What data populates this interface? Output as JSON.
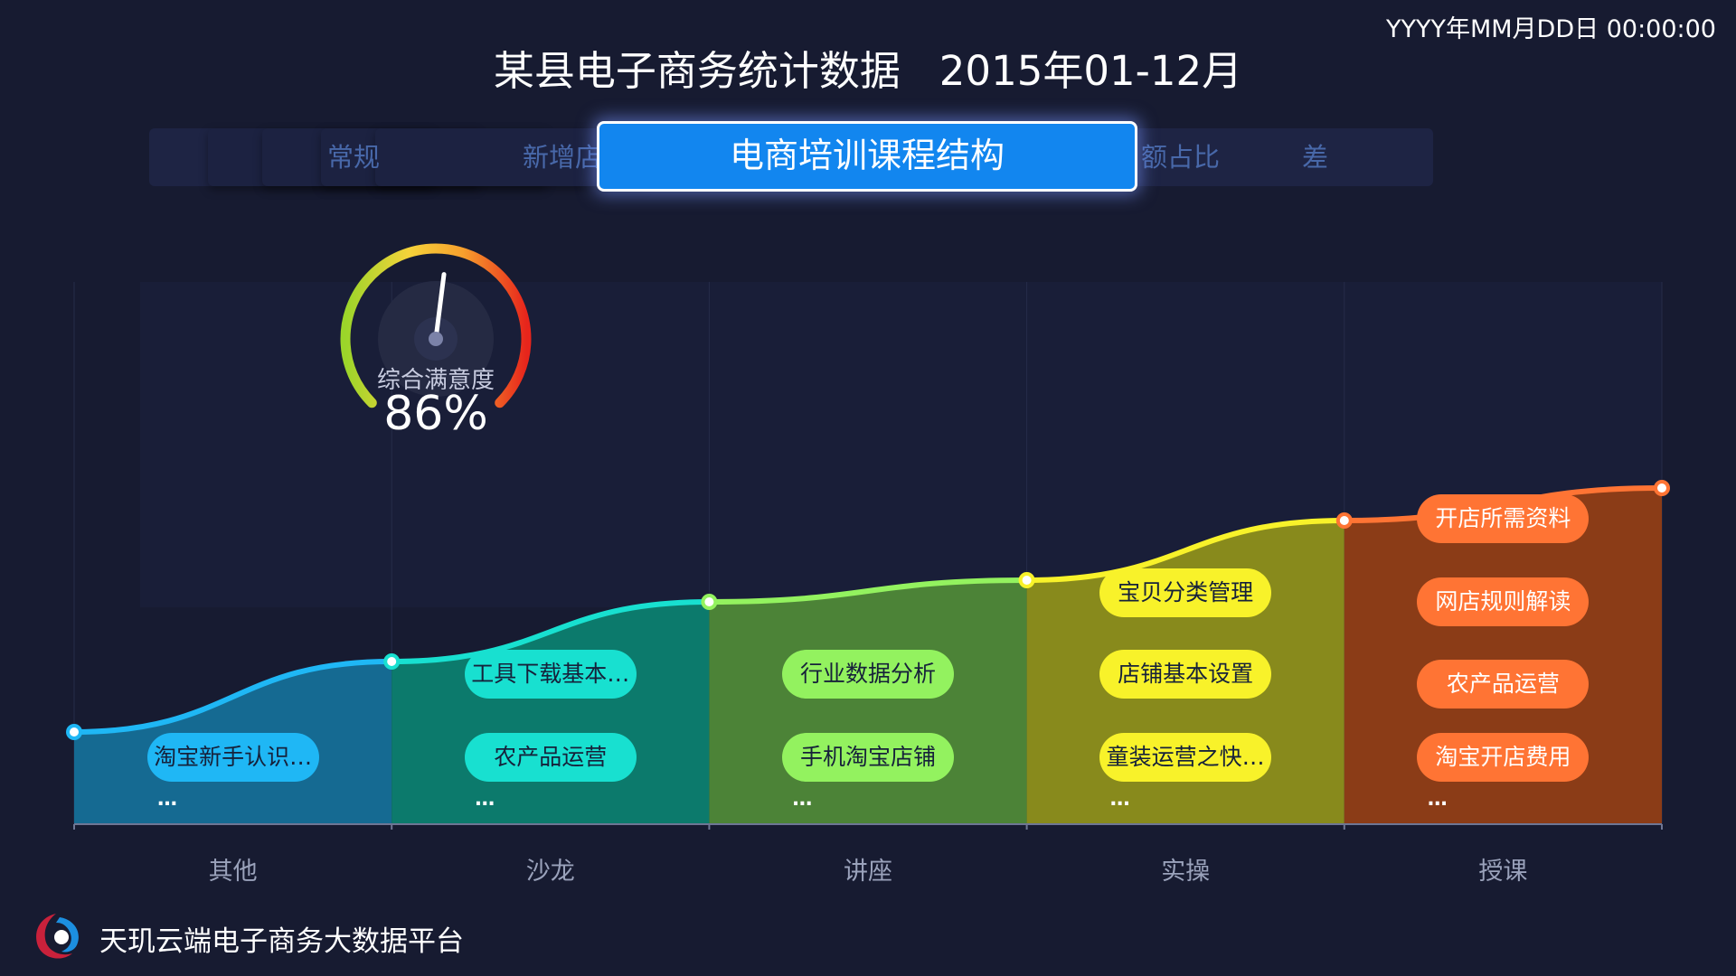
{
  "header": {
    "clock": "YYYY年MM月DD日 00:00:00",
    "title": "某县电子商务统计数据   2015年01-12月"
  },
  "tabs": {
    "items": [
      "常规",
      "新增店",
      "额占比",
      "差"
    ],
    "active": "电商培训课程结构"
  },
  "gauge": {
    "label": "综合满意度",
    "value": "86%",
    "percent": 86
  },
  "chart_data": {
    "type": "area",
    "categories": [
      "其他",
      "沙龙",
      "讲座",
      "实操",
      "授课"
    ],
    "segments": [
      {
        "category": "其他",
        "color": "#1fb7f5",
        "fill": "#156a92",
        "items": [
          "淘宝新手认识…"
        ],
        "more": "…"
      },
      {
        "category": "沙龙",
        "color": "#18e0d0",
        "fill": "#0c7a6c",
        "items": [
          "工具下载基本…",
          "农产品运营"
        ],
        "more": "…"
      },
      {
        "category": "讲座",
        "color": "#93f25f",
        "fill": "#4c8337",
        "items": [
          "行业数据分析",
          "手机淘宝店铺"
        ],
        "more": "…"
      },
      {
        "category": "实操",
        "color": "#f8f22a",
        "fill": "#888a1c",
        "items": [
          "宝贝分类管理",
          "店铺基本设置",
          "童装运营之快…"
        ],
        "more": "…"
      },
      {
        "category": "授课",
        "color": "#ff7434",
        "fill": "#8b3c17",
        "items": [
          "开店所需资料",
          "网店规则解读",
          "农产品运营",
          "淘宝开店费用"
        ],
        "more": "…"
      }
    ],
    "points": [
      0.17,
      0.3,
      0.41,
      0.45,
      0.56,
      0.62
    ]
  },
  "footer": {
    "platform": "天玑云端电子商务大数据平台"
  }
}
